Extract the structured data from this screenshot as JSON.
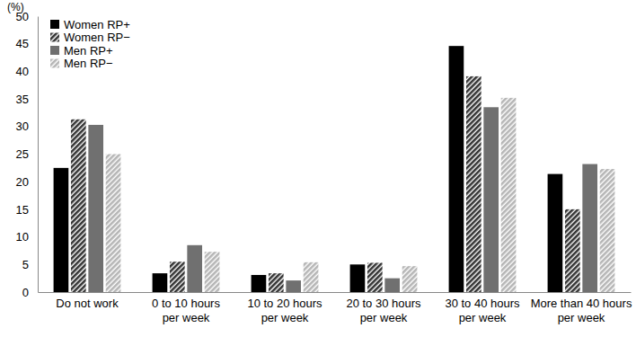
{
  "chart_data": {
    "type": "bar",
    "y_label": "(%)",
    "categories": [
      "Do not work",
      "0 to 10 hours per week",
      "10 to 20 hours per week",
      "20 to 30 hours per week",
      "30 to 40 hours per week",
      "More than 40 hours per week"
    ],
    "series": [
      {
        "name": "Women RP+",
        "color": "#000000",
        "values": [
          22.5,
          3.4,
          3.1,
          5.0,
          44.6,
          21.4
        ]
      },
      {
        "name": "Women RP−",
        "color": "#333333",
        "values": [
          31.3,
          5.5,
          3.4,
          5.3,
          39.1,
          15.0
        ]
      },
      {
        "name": "Men RP+",
        "color": "#707070",
        "values": [
          30.3,
          8.5,
          2.1,
          2.5,
          33.5,
          23.2
        ]
      },
      {
        "name": "Men RP−",
        "color": "#b5b5b5",
        "values": [
          25.0,
          7.3,
          5.4,
          4.7,
          35.2,
          22.3
        ]
      }
    ],
    "ylim": [
      0,
      50
    ],
    "yticks": [
      0,
      5,
      10,
      15,
      20,
      25,
      30,
      35,
      40,
      45,
      50
    ],
    "grid": false,
    "legend": "top-left"
  }
}
